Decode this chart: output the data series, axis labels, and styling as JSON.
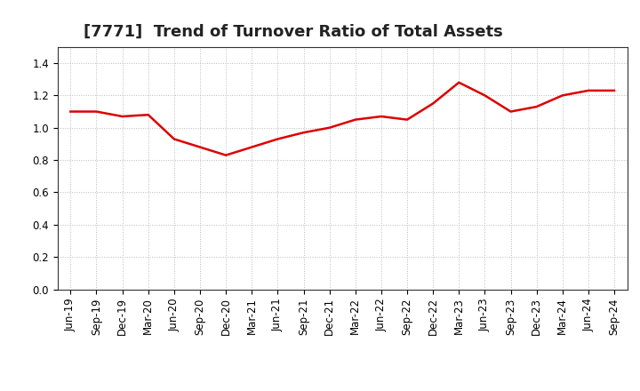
{
  "title": "[7771]  Trend of Turnover Ratio of Total Assets",
  "labels": [
    "Jun-19",
    "Sep-19",
    "Dec-19",
    "Mar-20",
    "Jun-20",
    "Sep-20",
    "Dec-20",
    "Mar-21",
    "Jun-21",
    "Sep-21",
    "Dec-21",
    "Mar-22",
    "Jun-22",
    "Sep-22",
    "Dec-22",
    "Mar-23",
    "Jun-23",
    "Sep-23",
    "Dec-23",
    "Mar-24",
    "Jun-24",
    "Sep-24"
  ],
  "values": [
    1.1,
    1.1,
    1.07,
    1.08,
    0.93,
    0.88,
    0.83,
    0.88,
    0.93,
    0.97,
    1.0,
    1.05,
    1.07,
    1.05,
    1.15,
    1.28,
    1.2,
    1.1,
    1.13,
    1.2,
    1.23,
    1.23
  ],
  "line_color": "#dd0000",
  "bg_color": "#ffffff",
  "plot_bg_color": "#ffffff",
  "grid_color": "#bbbbbb",
  "ylim": [
    0.0,
    1.5
  ],
  "yticks": [
    0.0,
    0.2,
    0.4,
    0.6,
    0.8,
    1.0,
    1.2,
    1.4
  ],
  "title_fontsize": 13,
  "tick_fontsize": 8.5
}
